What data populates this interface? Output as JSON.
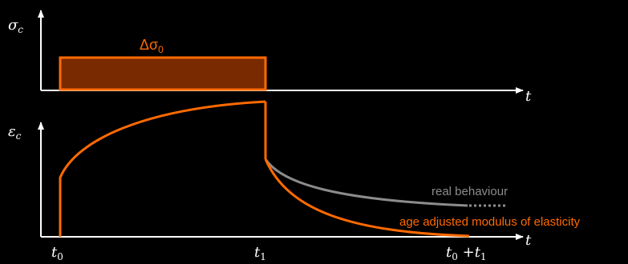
{
  "top_axis": {
    "y_label": "σ",
    "y_label_sub": "c",
    "x_label": "t"
  },
  "bottom_axis": {
    "y_label": "ε",
    "y_label_sub": "c",
    "x_label": "t"
  },
  "stress_block": {
    "label": "Δσ",
    "label_sub": "0"
  },
  "time_marks": {
    "t0": {
      "main": "t",
      "sub": "0"
    },
    "t1": {
      "main": "t",
      "sub": "1"
    },
    "t0t1": {
      "main1": "t",
      "sub1": "0",
      "plus": " +",
      "main2": "t",
      "sub2": "1"
    }
  },
  "curves": {
    "real_behaviour": "real behaviour",
    "age_adjusted": "age adjusted modulus of elasticity"
  },
  "colors": {
    "accent": "#ff6a00",
    "block_fill": "#7a2a00",
    "real_curve": "#8c8c8c",
    "axes": "#ffffff",
    "background": "#000000"
  }
}
